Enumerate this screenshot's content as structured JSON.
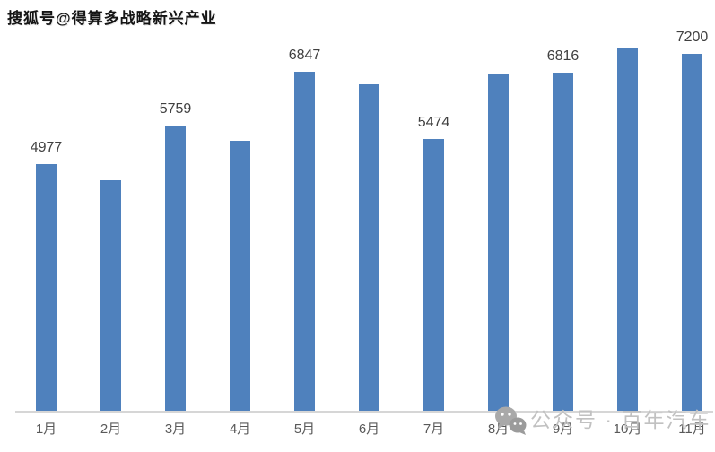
{
  "watermark_top": {
    "text": "搜狐号@得算多战略新兴产业"
  },
  "watermark_bottom": {
    "icon": "wechat-icon",
    "text": "公众号 · 百年汽车"
  },
  "colors": {
    "background": "#FFFFFF",
    "bar": "#4F81BD",
    "axis_line": "#D6D6D6",
    "data_label": "#404040",
    "category_label": "#595959",
    "watermark_top_text": "#141414",
    "watermark_bottom_text": "#C1C1C1"
  },
  "chart_data": {
    "type": "bar",
    "title": "",
    "xlabel": "",
    "ylabel": "",
    "categories": [
      "1月",
      "2月",
      "3月",
      "4月",
      "5月",
      "6月",
      "7月",
      "8月",
      "9月",
      "10月",
      "11月"
    ],
    "values": [
      4977,
      4650,
      5759,
      5450,
      6847,
      6590,
      5474,
      6790,
      6816,
      7330,
      7200
    ],
    "data_labels": [
      "4977",
      "",
      "5759",
      "",
      "6847",
      "",
      "5474",
      "",
      "6816",
      "",
      "7200"
    ],
    "labeled_points_note": "only odd months carry visible data labels; even-month values estimated from bar heights",
    "ylim": [
      0,
      7455
    ],
    "grid": false,
    "legend": false,
    "y_axis_visible": false,
    "x_axis_line_visible": true,
    "bar_color": "#4F81BD"
  }
}
